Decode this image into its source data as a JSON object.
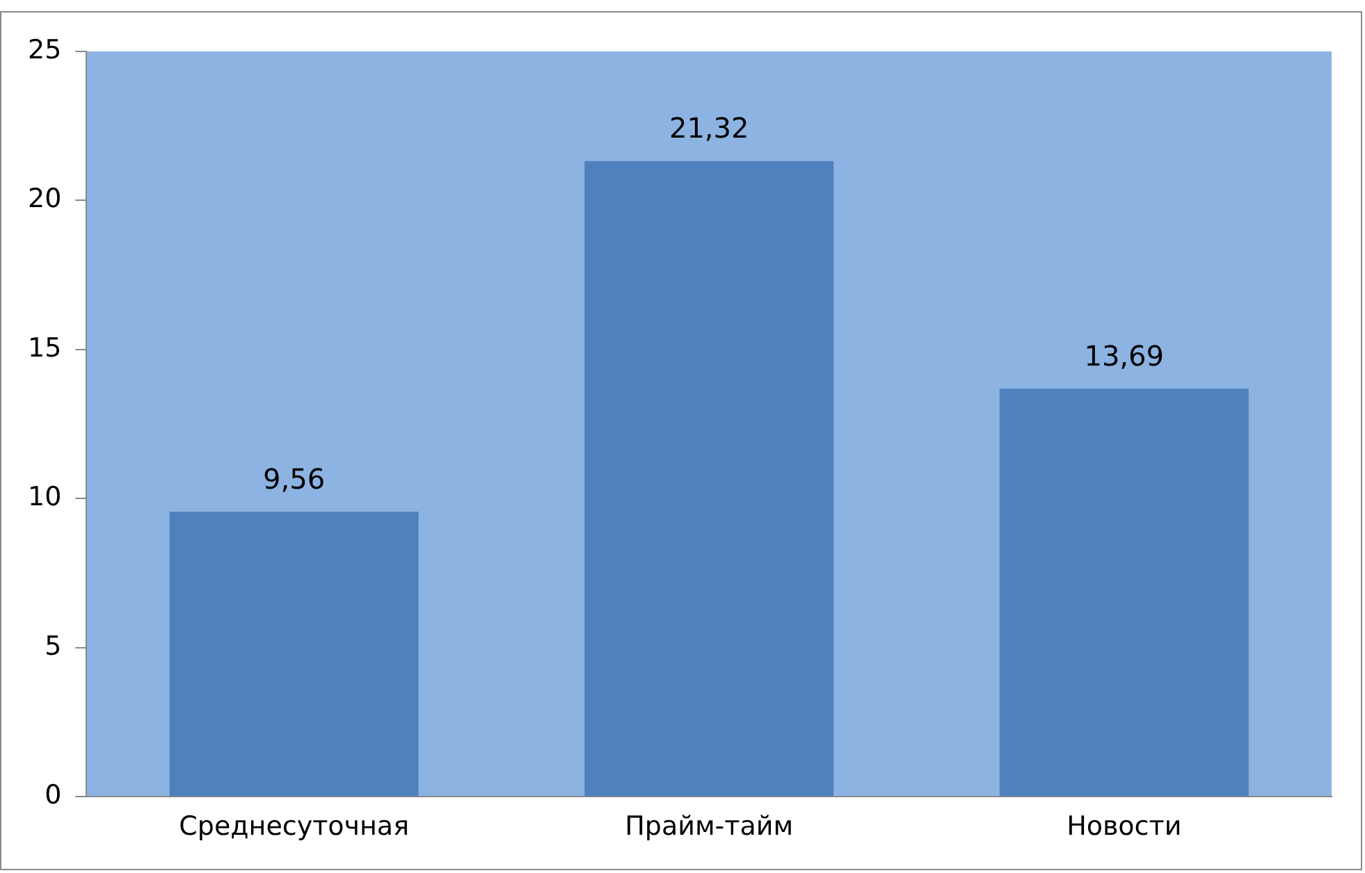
{
  "chart_data": {
    "type": "bar",
    "categories": [
      "Среднесуточная",
      "Прайм-тайм",
      "Новости"
    ],
    "values": [
      9.56,
      21.32,
      13.69
    ],
    "color": "#4f81bd",
    "value_labels": [
      "9,56",
      "21,32",
      "13,69"
    ],
    "ylim": [
      0,
      25
    ],
    "yticks": [
      0,
      5,
      10,
      15,
      20,
      25
    ],
    "grid": false,
    "legend": false
  }
}
